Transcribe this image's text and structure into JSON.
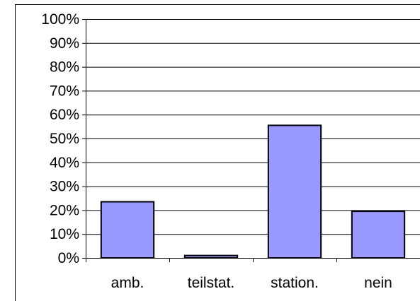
{
  "chart_data": {
    "type": "bar",
    "title": "",
    "xlabel": "",
    "ylabel": "",
    "categories": [
      "amb.",
      "teilstat.",
      "station.",
      "nein"
    ],
    "values": [
      23.5,
      1,
      55.5,
      19.5
    ],
    "ylim": [
      0,
      100
    ],
    "yticks": [
      0,
      10,
      20,
      30,
      40,
      50,
      60,
      70,
      80,
      90,
      100
    ],
    "ytick_labels": [
      "0%",
      "10%",
      "20%",
      "30%",
      "40%",
      "50%",
      "60%",
      "70%",
      "80%",
      "90%",
      "100%"
    ],
    "grid": true,
    "legend": "none",
    "bar_color": "#9999ff",
    "bar_edge_color": "#000000"
  }
}
